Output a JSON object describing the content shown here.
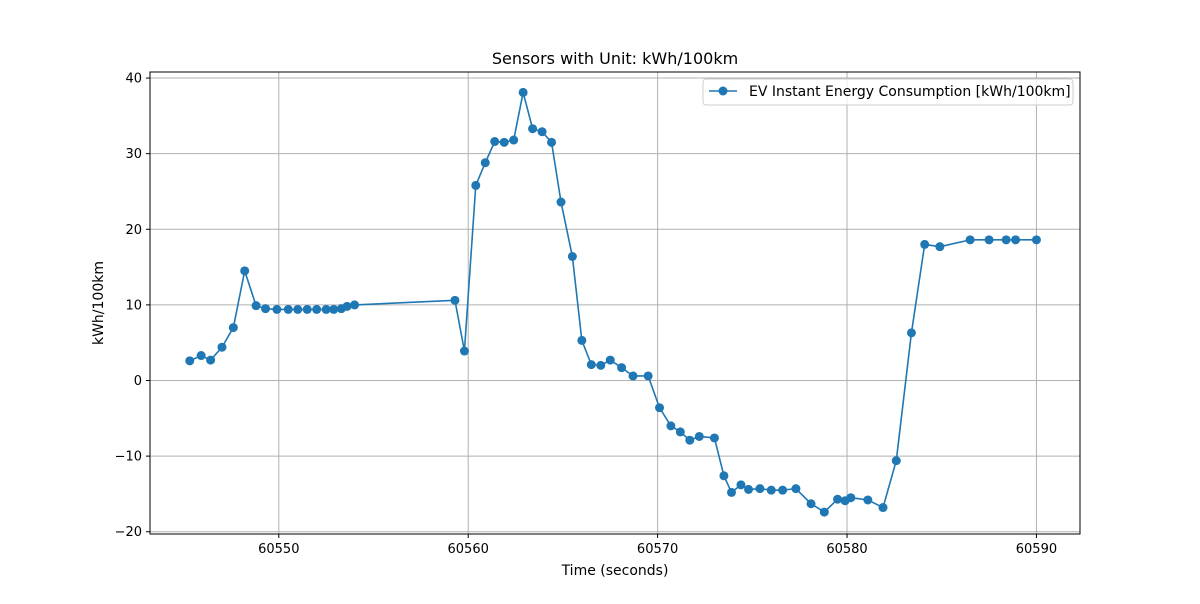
{
  "chart_data": {
    "type": "line",
    "title": "Sensors with Unit: kWh/100km",
    "xlabel": "Time (seconds)",
    "ylabel": "kWh/100km",
    "xlim": [
      60543.2,
      60592.3
    ],
    "ylim": [
      -20.3,
      40.8
    ],
    "xticks": [
      60550,
      60560,
      60570,
      60580,
      60590
    ],
    "yticks": [
      -20,
      -10,
      0,
      10,
      20,
      30,
      40
    ],
    "xtick_labels": [
      "60550",
      "60560",
      "60570",
      "60580",
      "60590"
    ],
    "ytick_labels": [
      "−20",
      "−10",
      "0",
      "10",
      "20",
      "30",
      "40"
    ],
    "grid": true,
    "legend_position": "top-right",
    "series": [
      {
        "name": "EV Instant Energy Consumption [kWh/100km]",
        "color": "#1f77b4",
        "marker": "circle",
        "x": [
          60545.3,
          60545.9,
          60546.4,
          60547.0,
          60547.6,
          60548.2,
          60548.8,
          60549.3,
          60549.9,
          60550.5,
          60551.0,
          60551.5,
          60552.0,
          60552.5,
          60552.9,
          60553.3,
          60553.6,
          60554.0,
          60559.3,
          60559.8,
          60560.4,
          60560.9,
          60561.4,
          60561.9,
          60562.4,
          60562.9,
          60563.4,
          60563.9,
          60564.4,
          60564.9,
          60565.5,
          60566.0,
          60566.5,
          60567.0,
          60567.5,
          60568.1,
          60568.7,
          60569.5,
          60570.1,
          60570.7,
          60571.2,
          60571.7,
          60572.2,
          60573.0,
          60573.5,
          60573.9,
          60574.4,
          60574.8,
          60575.4,
          60576.0,
          60576.6,
          60577.3,
          60578.1,
          60578.8,
          60579.5,
          60579.9,
          60580.2,
          60581.1,
          60581.9,
          60582.6,
          60583.4,
          60584.1,
          60584.9,
          60586.5,
          60587.5,
          60588.4,
          60588.9,
          60590.0
        ],
        "y": [
          2.6,
          3.3,
          2.7,
          4.4,
          7.0,
          14.5,
          9.9,
          9.5,
          9.4,
          9.4,
          9.4,
          9.4,
          9.4,
          9.4,
          9.4,
          9.5,
          9.8,
          10.0,
          10.6,
          3.9,
          25.8,
          28.8,
          31.6,
          31.5,
          31.8,
          38.1,
          33.3,
          32.9,
          31.5,
          23.6,
          16.4,
          5.3,
          2.1,
          2.0,
          2.7,
          1.7,
          0.6,
          0.6,
          -3.6,
          -6.0,
          -6.8,
          -7.9,
          -7.4,
          -7.6,
          -12.6,
          -14.8,
          -13.8,
          -14.4,
          -14.3,
          -14.5,
          -14.5,
          -14.3,
          -16.3,
          -17.4,
          -15.7,
          -15.9,
          -15.5,
          -15.8,
          -16.8,
          -10.6,
          6.3,
          18.0,
          17.7,
          18.6,
          18.6,
          18.6,
          18.6,
          18.6
        ]
      }
    ]
  }
}
